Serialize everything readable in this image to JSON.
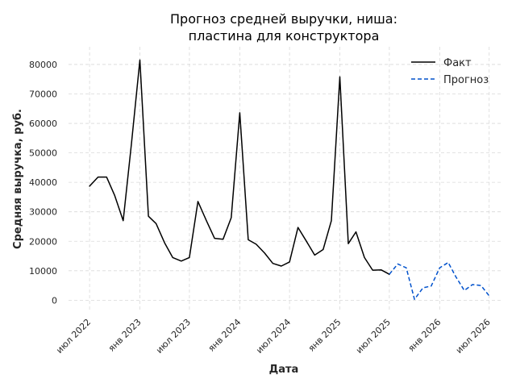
{
  "chart_data": {
    "type": "line",
    "title": [
      "Прогноз средней выручки, ниша:",
      "пластина для конструктора"
    ],
    "xlabel": "Дата",
    "ylabel": "Средняя выручка, руб.",
    "grid": true,
    "legend_position": "top-right",
    "ylim": [
      -4000,
      86000
    ],
    "yticks": [
      0,
      10000,
      20000,
      30000,
      40000,
      50000,
      60000,
      70000,
      80000
    ],
    "xlim": [
      "2022-04-15",
      "2026-08-15"
    ],
    "xticks": [
      {
        "date": "2022-07-01",
        "label": "июл 2022"
      },
      {
        "date": "2023-01-01",
        "label": "янв 2023"
      },
      {
        "date": "2023-07-01",
        "label": "июл 2023"
      },
      {
        "date": "2024-01-01",
        "label": "янв 2024"
      },
      {
        "date": "2024-07-01",
        "label": "июл 2024"
      },
      {
        "date": "2025-01-01",
        "label": "янв 2025"
      },
      {
        "date": "2025-07-01",
        "label": "июл 2025"
      },
      {
        "date": "2026-01-01",
        "label": "янв 2026"
      },
      {
        "date": "2026-07-01",
        "label": "июл 2026"
      }
    ],
    "series": [
      {
        "name": "Факт",
        "color": "#000000",
        "style": "solid",
        "points": [
          [
            "2022-07-01",
            38700
          ],
          [
            "2022-08-01",
            41800
          ],
          [
            "2022-09-01",
            41800
          ],
          [
            "2022-10-01",
            35500
          ],
          [
            "2022-11-01",
            27000
          ],
          [
            "2022-12-01",
            53000
          ],
          [
            "2023-01-01",
            81500
          ],
          [
            "2023-02-01",
            28500
          ],
          [
            "2023-03-01",
            26000
          ],
          [
            "2023-04-01",
            19500
          ],
          [
            "2023-05-01",
            14500
          ],
          [
            "2023-06-01",
            13300
          ],
          [
            "2023-07-01",
            14500
          ],
          [
            "2023-08-01",
            33500
          ],
          [
            "2023-09-01",
            27000
          ],
          [
            "2023-10-01",
            21000
          ],
          [
            "2023-11-01",
            20700
          ],
          [
            "2023-12-01",
            28000
          ],
          [
            "2024-01-01",
            63600
          ],
          [
            "2024-02-01",
            20500
          ],
          [
            "2024-03-01",
            19000
          ],
          [
            "2024-04-01",
            16000
          ],
          [
            "2024-05-01",
            12500
          ],
          [
            "2024-06-01",
            11600
          ],
          [
            "2024-07-01",
            13000
          ],
          [
            "2024-08-01",
            24700
          ],
          [
            "2024-09-01",
            20000
          ],
          [
            "2024-10-01",
            15300
          ],
          [
            "2024-11-01",
            17200
          ],
          [
            "2024-12-01",
            27000
          ],
          [
            "2025-01-01",
            75800
          ],
          [
            "2025-02-01",
            19200
          ],
          [
            "2025-03-01",
            23200
          ],
          [
            "2025-04-01",
            14500
          ],
          [
            "2025-05-01",
            10200
          ],
          [
            "2025-06-01",
            10300
          ],
          [
            "2025-07-01",
            8800
          ]
        ]
      },
      {
        "name": "Прогноз",
        "color": "#0051cc",
        "style": "dashed",
        "points": [
          [
            "2025-07-01",
            8800
          ],
          [
            "2025-08-01",
            12300
          ],
          [
            "2025-09-01",
            11000
          ],
          [
            "2025-10-01",
            300
          ],
          [
            "2025-11-01",
            4200
          ],
          [
            "2025-12-01",
            4800
          ],
          [
            "2026-01-01",
            11000
          ],
          [
            "2026-02-01",
            12800
          ],
          [
            "2026-03-01",
            8000
          ],
          [
            "2026-04-01",
            3300
          ],
          [
            "2026-05-01",
            5300
          ],
          [
            "2026-06-01",
            5000
          ],
          [
            "2026-07-01",
            1500
          ]
        ]
      }
    ]
  }
}
